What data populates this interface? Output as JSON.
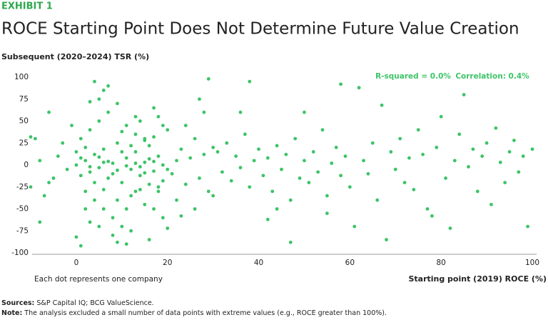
{
  "exhibit": "EXHIBIT 1",
  "chart_data": {
    "type": "scatter",
    "title": "ROCE Starting Point Does Not Determine Future Value Creation",
    "y_label": "Subsequent (2020–2024) TSR (%)",
    "x_label": "Starting point (2019) ROCE (%)",
    "annotations": [
      "R-squared = 0.0%",
      "Correlation: 0.4%",
      "Each dot represents one company"
    ],
    "xlim": [
      -10,
      100
    ],
    "xticks": [
      0,
      20,
      40,
      60,
      80,
      100
    ],
    "ylim": [
      -100,
      100
    ],
    "yticks": [
      -100,
      -75,
      -50,
      -25,
      0,
      25,
      50,
      75,
      100
    ],
    "grid": false,
    "series": [
      {
        "color": "#3cc467",
        "x": [
          2,
          3,
          4,
          5,
          6,
          7,
          8,
          9,
          10,
          11,
          12,
          13,
          14,
          15,
          16,
          17,
          18,
          19,
          1,
          2,
          3,
          4,
          5,
          6,
          7,
          8,
          9,
          10,
          11,
          12,
          13,
          14,
          15,
          16,
          17,
          18,
          0,
          1,
          0,
          -2,
          -4,
          -6,
          -8,
          -9,
          -7,
          -3,
          -5,
          -1,
          3,
          5,
          6,
          7,
          4,
          8,
          9,
          11,
          13,
          15,
          17,
          19,
          20,
          21,
          22,
          23,
          24,
          25,
          26,
          27,
          28,
          29,
          30,
          22,
          24,
          26,
          28,
          30,
          2,
          4,
          6,
          8,
          10,
          12,
          14,
          16,
          18,
          20,
          6,
          10,
          14,
          18,
          2,
          5,
          12,
          16,
          20,
          23,
          27,
          29,
          31,
          32,
          33,
          34,
          35,
          36,
          37,
          38,
          39,
          40,
          41,
          42,
          43,
          44,
          45,
          46,
          47,
          48,
          49,
          50,
          51,
          52,
          53,
          54,
          55,
          56,
          57,
          58,
          59,
          60,
          36,
          38,
          42,
          44,
          47,
          50,
          55,
          58,
          62,
          61,
          63,
          64,
          65,
          66,
          67,
          68,
          69,
          70,
          71,
          72,
          73,
          74,
          75,
          76,
          77,
          78,
          79,
          80,
          81,
          82,
          83,
          84,
          85,
          86,
          87,
          88,
          89,
          90,
          91,
          92,
          93,
          94,
          95,
          96,
          97,
          98,
          99,
          100,
          -10,
          -10,
          -8,
          -6,
          0,
          1,
          3,
          9,
          11,
          13,
          15,
          17,
          19,
          1,
          3,
          5,
          7,
          9,
          11,
          13,
          15,
          17,
          19
        ],
        "y": [
          5,
          -8,
          12,
          -3,
          18,
          -15,
          2,
          25,
          -20,
          8,
          -5,
          15,
          -12,
          3,
          22,
          -7,
          10,
          -18,
          30,
          -30,
          40,
          -40,
          50,
          -50,
          60,
          -60,
          70,
          -70,
          45,
          -35,
          35,
          -28,
          28,
          -22,
          32,
          -25,
          0,
          -12,
          15,
          -5,
          10,
          -20,
          5,
          30,
          -35,
          25,
          -15,
          45,
          -65,
          75,
          85,
          90,
          95,
          -80,
          -88,
          -90,
          55,
          -45,
          65,
          -60,
          40,
          -10,
          5,
          18,
          -22,
          8,
          30,
          -15,
          12,
          -30,
          20,
          -40,
          45,
          -50,
          60,
          -35,
          20,
          -20,
          3,
          -10,
          15,
          22,
          -2,
          7,
          -30,
          -5,
          -28,
          38,
          50,
          55,
          -50,
          -70,
          -75,
          -85,
          -72,
          -58,
          75,
          98,
          15,
          -8,
          25,
          -18,
          10,
          -3,
          35,
          -25,
          5,
          18,
          -12,
          8,
          -30,
          22,
          -5,
          12,
          -40,
          30,
          -15,
          5,
          -20,
          15,
          -8,
          40,
          -35,
          2,
          20,
          -12,
          10,
          -25,
          60,
          95,
          -62,
          -50,
          -88,
          60,
          -55,
          92,
          88,
          -70,
          5,
          -10,
          25,
          -40,
          68,
          -85,
          15,
          -5,
          30,
          -20,
          8,
          -28,
          40,
          12,
          -50,
          -58,
          20,
          55,
          -15,
          -72,
          5,
          35,
          80,
          -2,
          18,
          -30,
          10,
          25,
          -45,
          42,
          3,
          -20,
          15,
          28,
          -8,
          10,
          -70,
          18,
          -25,
          32,
          -65,
          60,
          -82,
          -92,
          72,
          -40,
          -50,
          -30,
          30,
          -50,
          45,
          8,
          -2,
          9,
          4,
          -6,
          -1,
          2,
          -9,
          4,
          0
        ]
      }
    ]
  },
  "footer": {
    "sources_label": "Sources:",
    "sources": "S&P Capital IQ; BCG ValueScience.",
    "note_label": "Note:",
    "note": "The analysis excluded a small number of data points with extreme values (e.g., ROCE greater than 100%)."
  }
}
